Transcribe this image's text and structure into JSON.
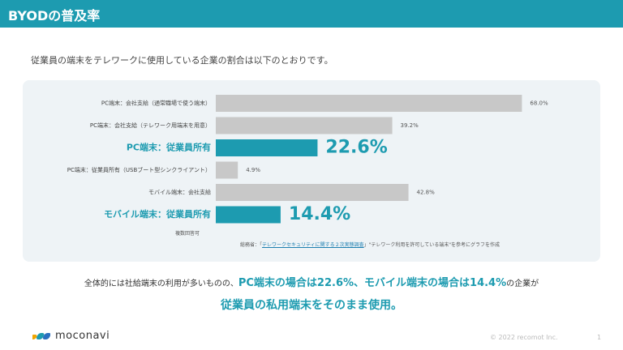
{
  "header": {
    "title": "BYODの普及率"
  },
  "lead_text": "従業員の端末をテレワークに使用している企業の割合は以下のとおりです。",
  "chart_data": {
    "type": "bar",
    "orientation": "horizontal",
    "xlim": [
      0,
      100
    ],
    "categories": [
      "PC端末：会社支給（通常職場で使う端末）",
      "PC端末：会社支給（テレワーク用端末を用意）",
      "PC端末：従業員所有",
      "PC端末：従業員所有（USBブート型シンクライアント）",
      "モバイル端末：会社支給",
      "モバイル端末：従業員所有"
    ],
    "values": [
      68.0,
      39.2,
      22.6,
      4.9,
      42.8,
      14.4
    ],
    "value_labels": [
      "68.0%",
      "39.2%",
      "22.6%",
      "4.9%",
      "42.8%",
      "14.4%"
    ],
    "highlighted": [
      false,
      false,
      true,
      false,
      false,
      true
    ],
    "colors": {
      "default": "#c8c8c8",
      "highlight": "#1d9bb0"
    }
  },
  "note": "複数回答可",
  "source": {
    "prefix": "総務省：「",
    "link": "テレワークセキュリティに関する２次実態調査",
    "suffix": "」\"テレワーク利用を許可している端末\"を参考にグラフを作成"
  },
  "summary": {
    "part1": "全体的には社給端末の利用が多いものの、",
    "emphasis": "PC端末の場合は22.6%、モバイル端末の場合は14.4%",
    "part2": "の企業が",
    "line2": "従業員の私用端末をそのまま使用。"
  },
  "footer": {
    "logo": "moconavi",
    "copyright": "© 2022 recomot Inc.",
    "page": "1"
  },
  "colors": {
    "accent": "#1d9bb0"
  }
}
